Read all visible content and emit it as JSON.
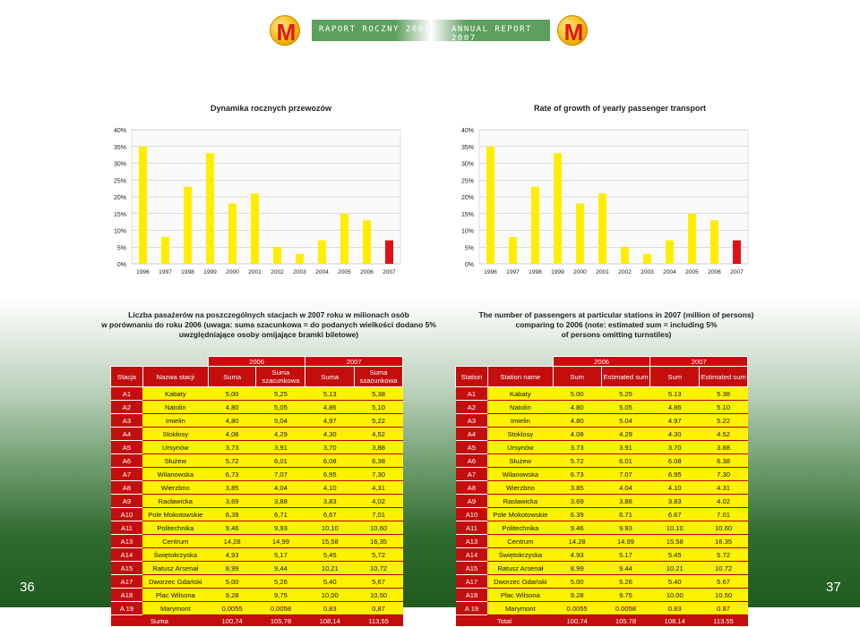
{
  "header": {
    "logo_letter": "M",
    "left_title": "RAPORT ROCZNY 2007",
    "right_title": "ANNUAL REPORT 2007"
  },
  "chart_data": [
    {
      "type": "bar",
      "title": "Dynamika rocznych przewozów",
      "categories": [
        "1996",
        "1997",
        "1998",
        "1999",
        "2000",
        "2001",
        "2002",
        "2003",
        "2004",
        "2005",
        "2006",
        "2007"
      ],
      "values": [
        35,
        8,
        23,
        33,
        18,
        21,
        5,
        3,
        7,
        15,
        13,
        7
      ],
      "colors": [
        "#ffee00",
        "#ffee00",
        "#ffee00",
        "#ffee00",
        "#ffee00",
        "#ffee00",
        "#ffee00",
        "#ffee00",
        "#ffee00",
        "#ffee00",
        "#ffee00",
        "#e0101a"
      ],
      "yticks": [
        "0%",
        "5%",
        "10%",
        "15%",
        "20%",
        "25%",
        "30%",
        "35%",
        "40%"
      ],
      "ylim": [
        0,
        40
      ],
      "grid": true
    },
    {
      "type": "bar",
      "title": "Rate of growth of yearly passenger transport",
      "categories": [
        "1996",
        "1997",
        "1998",
        "1999",
        "2000",
        "2001",
        "2002",
        "2003",
        "2004",
        "2005",
        "2006",
        "2007"
      ],
      "values": [
        35,
        8,
        23,
        33,
        18,
        21,
        5,
        3,
        7,
        15,
        13,
        7
      ],
      "colors": [
        "#ffee00",
        "#ffee00",
        "#ffee00",
        "#ffee00",
        "#ffee00",
        "#ffee00",
        "#ffee00",
        "#ffee00",
        "#ffee00",
        "#ffee00",
        "#ffee00",
        "#e0101a"
      ],
      "yticks": [
        "0%",
        "5%",
        "10%",
        "15%",
        "20%",
        "25%",
        "30%",
        "35%",
        "40%"
      ],
      "ylim": [
        0,
        40
      ],
      "grid": true
    }
  ],
  "left_section": {
    "title_lines": [
      "Liczba pasażerów na poszczególnych stacjach w 2007 roku w milionach osób",
      "w porównaniu do roku 2006 (uwaga: suma szacunkowa = do podanych wielkości dodano 5%",
      "uwzględniające osoby omijające bramki biletowe)"
    ],
    "years": [
      "2006",
      "2007"
    ],
    "headers": [
      "Stacja",
      "Nazwa stacji",
      "Suma",
      "Suma szacunkowa",
      "Suma",
      "Suma szacunkowa"
    ],
    "rows": [
      [
        "A1",
        "Kabaty",
        "5,00",
        "5,25",
        "5,13",
        "5,38"
      ],
      [
        "A2",
        "Natolin",
        "4,80",
        "5,05",
        "4,86",
        "5,10"
      ],
      [
        "A3",
        "Imielin",
        "4,80",
        "5,04",
        "4,97",
        "5,22"
      ],
      [
        "A4",
        "Stokłosy",
        "4,08",
        "4,29",
        "4,30",
        "4,52"
      ],
      [
        "A5",
        "Ursynów",
        "3,73",
        "3,91",
        "3,70",
        "3,88"
      ],
      [
        "A6",
        "Służew",
        "5,72",
        "6,01",
        "6,08",
        "6,38"
      ],
      [
        "A7",
        "Wilanowska",
        "6,73",
        "7,07",
        "6,95",
        "7,30"
      ],
      [
        "A8",
        "Wierzbno",
        "3,85",
        "4,04",
        "4,10",
        "4,31"
      ],
      [
        "A9",
        "Racławicka",
        "3,69",
        "3,88",
        "3,83",
        "4,02"
      ],
      [
        "A10",
        "Pole Mokotowskie",
        "6,39",
        "6,71",
        "6,67",
        "7,01"
      ],
      [
        "A11",
        "Politechnika",
        "9,46",
        "9,93",
        "10,10",
        "10,60"
      ],
      [
        "A13",
        "Centrum",
        "14,28",
        "14,99",
        "15,58",
        "16,35"
      ],
      [
        "A14",
        "Świętokrzyska",
        "4,93",
        "5,17",
        "5,45",
        "5,72"
      ],
      [
        "A15",
        "Ratusz Arsenał",
        "8,99",
        "9,44",
        "10,21",
        "10,72"
      ],
      [
        "A17",
        "Dworzec Gdański",
        "5,00",
        "5,26",
        "5,40",
        "5,67"
      ],
      [
        "A18",
        "Plac Wilsona",
        "9,28",
        "9,75",
        "10,00",
        "10,50"
      ],
      [
        "A 19",
        "Marymont",
        "0,0055",
        "0,0058",
        "0,83",
        "0,87"
      ]
    ],
    "total": [
      "Suma",
      "100,74",
      "105,78",
      "108,14",
      "113,55"
    ]
  },
  "right_section": {
    "title_lines": [
      "The number of passengers at particular stations in 2007 (million of persons)",
      "comparing to 2006 (note: estimated sum = including 5%",
      "of persons omitting turnstiles)"
    ],
    "years": [
      "2006",
      "2007"
    ],
    "headers": [
      "Station",
      "Station name",
      "Sum",
      "Estimated sum",
      "Sum",
      "Estimated sum"
    ],
    "rows": [
      [
        "A1",
        "Kabaty",
        "5.00",
        "5.25",
        "5.13",
        "5.38"
      ],
      [
        "A2",
        "Natolin",
        "4.80",
        "5.05",
        "4.86",
        "5.10"
      ],
      [
        "A3",
        "Imielin",
        "4.80",
        "5.04",
        "4.97",
        "5.22"
      ],
      [
        "A4",
        "Stoklosy",
        "4.08",
        "4.29",
        "4.30",
        "4.52"
      ],
      [
        "A5",
        "Ursynów",
        "3.73",
        "3.91",
        "3.70",
        "3.88"
      ],
      [
        "A6",
        "Służew",
        "5.72",
        "6.01",
        "6.08",
        "6.38"
      ],
      [
        "A7",
        "Wilanowska",
        "6.73",
        "7.07",
        "6.95",
        "7.30"
      ],
      [
        "A8",
        "Wierzbno",
        "3.85",
        "4.04",
        "4.10",
        "4.31"
      ],
      [
        "A9",
        "Racławicka",
        "3.69",
        "3.88",
        "3.83",
        "4.02"
      ],
      [
        "A10",
        "Pole Mokotowskie",
        "6.39",
        "6.71",
        "6.67",
        "7.01"
      ],
      [
        "A11",
        "Politechnika",
        "9.46",
        "9.93",
        "10.10",
        "10.60"
      ],
      [
        "A13",
        "Centrum",
        "14.28",
        "14.99",
        "15.58",
        "16.35"
      ],
      [
        "A14",
        "Świętokrzyska",
        "4.93",
        "5.17",
        "5.45",
        "5.72"
      ],
      [
        "A15",
        "Ratusz Arsenał",
        "8.99",
        "9.44",
        "10.21",
        "10.72"
      ],
      [
        "A17",
        "Dworzec Gdański",
        "5.00",
        "5.26",
        "5.40",
        "5.67"
      ],
      [
        "A18",
        "Plac Wilsona",
        "9.28",
        "9.75",
        "10.00",
        "10.50"
      ],
      [
        "A 19",
        "Marymont",
        "0.0055",
        "0.0058",
        "0.83",
        "0.87"
      ]
    ],
    "total": [
      "Total",
      "100.74",
      "105.78",
      "108.14",
      "113.55"
    ]
  },
  "page_numbers": {
    "left": "36",
    "right": "37"
  }
}
